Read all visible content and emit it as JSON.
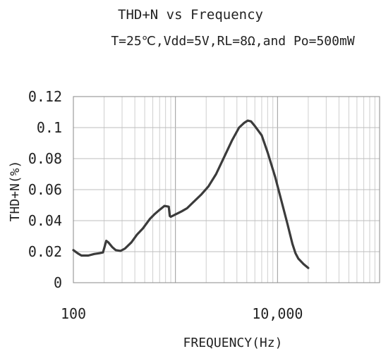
{
  "chart_data": {
    "type": "line",
    "title": "THD+N vs Frequency",
    "subtitle": "T=25℃,Vdd=5V,RL=8Ω,and Po=500mW",
    "xlabel": "FREQUENCY(Hz)",
    "ylabel": "THD+N(%)",
    "x_scale": "log",
    "xlim": [
      100,
      100000
    ],
    "ylim": [
      0,
      0.12
    ],
    "x_tick_labels": [
      "100",
      "10,000"
    ],
    "y_tick_labels": [
      "0",
      "0.02",
      "0.04",
      "0.06",
      "0.08",
      "0.1",
      "0.12"
    ],
    "grid": true,
    "series": [
      {
        "x": [
          100,
          110,
          120,
          140,
          160,
          180,
          195,
          200,
          210,
          220,
          240,
          260,
          290,
          320,
          370,
          420,
          480,
          560,
          620,
          700,
          780,
          860,
          880,
          900,
          1000,
          1150,
          1300,
          1500,
          1800,
          2100,
          2500,
          3000,
          3600,
          4200,
          4700,
          5100,
          5500,
          6000,
          7000,
          8000,
          9500,
          11000,
          12500,
          14000,
          15000,
          16000,
          18000,
          20000
        ],
        "values": [
          0.021,
          0.019,
          0.0175,
          0.0175,
          0.0185,
          0.019,
          0.0195,
          0.022,
          0.027,
          0.026,
          0.023,
          0.021,
          0.0205,
          0.022,
          0.026,
          0.031,
          0.035,
          0.041,
          0.044,
          0.047,
          0.0495,
          0.049,
          0.043,
          0.0425,
          0.044,
          0.046,
          0.048,
          0.052,
          0.057,
          0.062,
          0.07,
          0.081,
          0.092,
          0.1,
          0.103,
          0.1045,
          0.104,
          0.101,
          0.095,
          0.084,
          0.068,
          0.052,
          0.038,
          0.025,
          0.019,
          0.0155,
          0.012,
          0.0095
        ]
      }
    ]
  }
}
